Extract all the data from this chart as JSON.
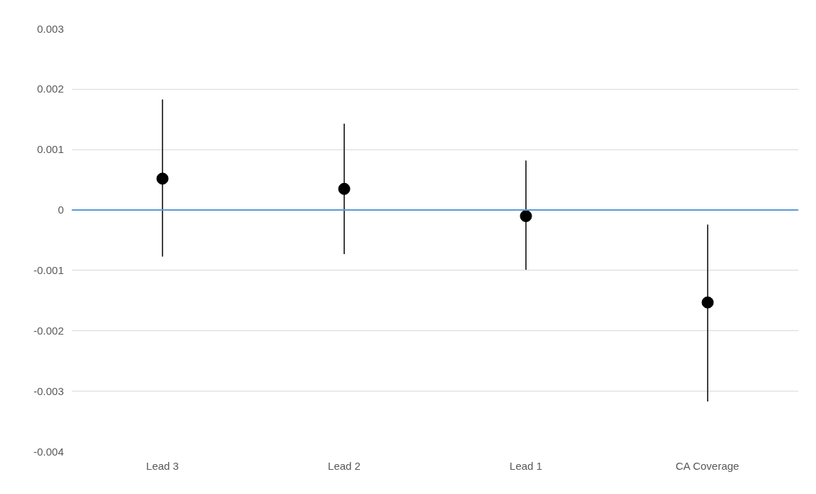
{
  "chart_data": {
    "type": "scatter",
    "categories": [
      "Lead 3",
      "Lead 2",
      "Lead 1",
      "CA Coverage"
    ],
    "values": [
      0.00052,
      0.00035,
      -0.0001,
      -0.00153
    ],
    "errors": [
      [
        -0.00077,
        0.00183
      ],
      [
        -0.00073,
        0.00143
      ],
      [
        -0.00099,
        0.00082
      ],
      [
        -0.00317,
        -0.00024
      ]
    ],
    "color": "#000000",
    "marker": "circle",
    "ylim": [
      -0.004,
      0.003
    ],
    "yticks": [
      {
        "value": -0.004,
        "label": "-0.004"
      },
      {
        "value": -0.003,
        "label": "-0.003"
      },
      {
        "value": -0.002,
        "label": "-0.002"
      },
      {
        "value": -0.001,
        "label": "-0.001"
      },
      0,
      {
        "value": 0.001,
        "label": "0.001"
      },
      {
        "value": 0.002,
        "label": "0.002"
      },
      {
        "value": 0.003,
        "label": "0.003"
      }
    ],
    "ref_lines": [
      {
        "axis": "y",
        "value": 0,
        "color": "#5b9bd5"
      }
    ],
    "grid": "y"
  }
}
